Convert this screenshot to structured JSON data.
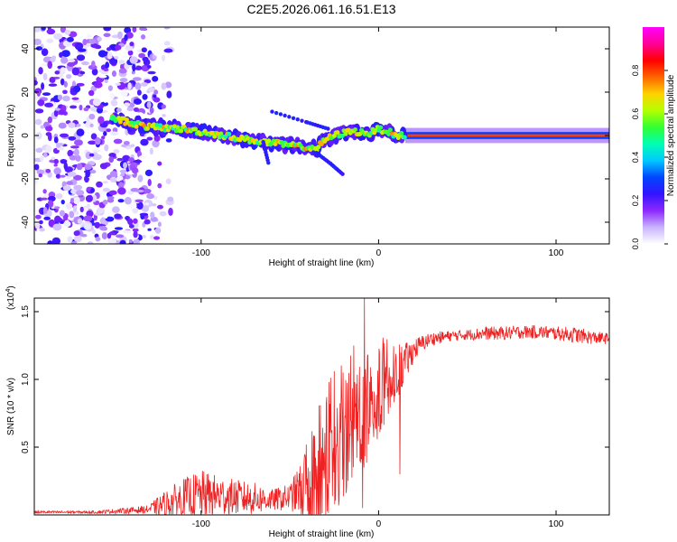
{
  "title": "C2E5.2026.061.16.51.E13",
  "chart_data": [
    {
      "type": "heatmap",
      "title": "C2E5.2026.061.16.51.E13",
      "xlabel": "Height of straight line (km)",
      "ylabel": "Frequency (Hz)",
      "xlim": [
        -194,
        130
      ],
      "ylim": [
        -50,
        50
      ],
      "xticks": [
        -100,
        0,
        100
      ],
      "yticks": [
        -40,
        -20,
        0,
        20,
        40
      ],
      "colorbar": {
        "label": "Normalized spectral amplitude",
        "range": [
          0,
          1
        ],
        "ticks": [
          "0.0",
          "0.2",
          "0.4",
          "0.6",
          "0.8"
        ],
        "colors": [
          "#ffffff",
          "#c8b4ff",
          "#8c28ff",
          "#3214ff",
          "#0046ff",
          "#00c8ff",
          "#00ffb4",
          "#32ff32",
          "#b4ff00",
          "#ffd200",
          "#ff6400",
          "#ff0000",
          "#ff0096",
          "#ff00ff"
        ]
      },
      "regions": {
        "noise_band_end_x": -125,
        "noise_amplitude": 0.25,
        "trace_amplitude": 0.45,
        "carrier_start_x": 15,
        "carrier_amplitude": 0.8
      },
      "trace": [
        {
          "x": -150,
          "y": 8
        },
        {
          "x": -130,
          "y": 4
        },
        {
          "x": -110,
          "y": 3
        },
        {
          "x": -95,
          "y": 1
        },
        {
          "x": -80,
          "y": -1
        },
        {
          "x": -65,
          "y": -3
        },
        {
          "x": -55,
          "y": -4
        },
        {
          "x": -45,
          "y": -5
        },
        {
          "x": -35,
          "y": -6
        },
        {
          "x": -30,
          "y": -2
        },
        {
          "x": -25,
          "y": 0
        },
        {
          "x": -15,
          "y": 2
        },
        {
          "x": -5,
          "y": 1
        },
        {
          "x": 0,
          "y": 3
        },
        {
          "x": 5,
          "y": 2
        },
        {
          "x": 10,
          "y": 0
        },
        {
          "x": 15,
          "y": 0
        },
        {
          "x": 130,
          "y": 0
        }
      ],
      "branches": [
        {
          "x": [
            -60,
            -40,
            -28
          ],
          "y": [
            11,
            6,
            3
          ]
        },
        {
          "x": [
            -35,
            -27,
            -20
          ],
          "y": [
            -8,
            -13,
            -18
          ]
        },
        {
          "x": [
            -65,
            -62
          ],
          "y": [
            -3,
            -13
          ]
        }
      ]
    },
    {
      "type": "line",
      "title": "",
      "xlabel": "Height of straight line (km)",
      "ylabel": "SNR (10 * v/v)",
      "y_multiplier": "(x10",
      "y_multiplier_exp": "4",
      "y_multiplier_close": ")",
      "xlim": [
        -194,
        130
      ],
      "ylim": [
        0,
        1.6
      ],
      "xticks": [
        -100,
        0,
        100
      ],
      "yticks": [
        "0.5",
        "1.0",
        "1.5"
      ],
      "series": [
        {
          "name": "SNR",
          "color": "#ee2222",
          "envelope": {
            "x": [
              -194,
              -160,
              -130,
              -120,
              -110,
              -100,
              -90,
              -80,
              -70,
              -60,
              -50,
              -45,
              -40,
              -35,
              -30,
              -25,
              -20,
              -15,
              -10,
              -5,
              0,
              5,
              10,
              15,
              20,
              25,
              30,
              40,
              50,
              60,
              70,
              80,
              90,
              100,
              110,
              120,
              130
            ],
            "base": [
              0.02,
              0.02,
              0.04,
              0.08,
              0.12,
              0.15,
              0.14,
              0.13,
              0.12,
              0.11,
              0.13,
              0.18,
              0.25,
              0.35,
              0.45,
              0.55,
              0.62,
              0.7,
              0.8,
              0.88,
              0.95,
              1.0,
              1.05,
              1.12,
              1.22,
              1.27,
              1.3,
              1.32,
              1.33,
              1.34,
              1.34,
              1.35,
              1.35,
              1.34,
              1.33,
              1.31,
              1.3
            ],
            "amp": [
              0.01,
              0.01,
              0.03,
              0.1,
              0.15,
              0.18,
              0.15,
              0.13,
              0.12,
              0.08,
              0.1,
              0.18,
              0.3,
              0.45,
              0.55,
              0.55,
              0.5,
              0.5,
              0.5,
              0.45,
              0.38,
              0.3,
              0.22,
              0.15,
              0.08,
              0.06,
              0.05,
              0.04,
              0.04,
              0.05,
              0.05,
              0.05,
              0.05,
              0.05,
              0.06,
              0.05,
              0.04
            ]
          },
          "peaks": [
            {
              "x": -8,
              "y": 1.62
            },
            {
              "x": -14,
              "y": 1.25
            },
            {
              "x": -20,
              "y": 1.05
            },
            {
              "x": -28,
              "y": 0.98
            },
            {
              "x": 12,
              "y": 0.3
            },
            {
              "x": -9,
              "y": 0.05
            }
          ]
        }
      ]
    }
  ]
}
